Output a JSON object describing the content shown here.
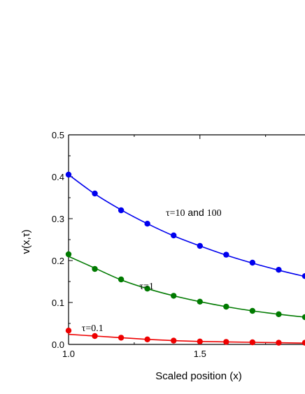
{
  "chart_data": {
    "type": "line",
    "xlabel": "Scaled position (x)",
    "ylabel": "v(x,τ)",
    "xlim": [
      1.0,
      1.9
    ],
    "ylim": [
      0.0,
      0.5
    ],
    "x_ticks": [
      "1.0",
      "1.5"
    ],
    "y_ticks": [
      "0.0",
      "0.1",
      "0.2",
      "0.3",
      "0.4",
      "0.5"
    ],
    "x_tick_values": [
      1.0,
      1.5
    ],
    "y_tick_values": [
      0.0,
      0.1,
      0.2,
      0.3,
      0.4,
      0.5
    ],
    "x_minor_ticks": [
      1.25,
      1.75
    ],
    "y_minor_ticks": [
      0.05,
      0.15,
      0.25,
      0.35,
      0.45
    ],
    "x": [
      1.0,
      1.1,
      1.2,
      1.3,
      1.4,
      1.5,
      1.6,
      1.7,
      1.8,
      1.9
    ],
    "series": [
      {
        "color": "#0000ee",
        "points": [
          0.405,
          0.36,
          0.32,
          0.288,
          0.26,
          0.235,
          0.214,
          0.195,
          0.178,
          0.163
        ],
        "curve": [
          0.405,
          0.359,
          0.321,
          0.288,
          0.259,
          0.235,
          0.213,
          0.194,
          0.177,
          0.162
        ]
      },
      {
        "color": "#007a00",
        "points": [
          0.215,
          0.18,
          0.155,
          0.133,
          0.116,
          0.102,
          0.09,
          0.08,
          0.072,
          0.065
        ],
        "curve": [
          0.21,
          0.182,
          0.154,
          0.133,
          0.116,
          0.102,
          0.09,
          0.08,
          0.072,
          0.065
        ]
      },
      {
        "color": "#ee0000",
        "points": [
          0.033,
          0.02,
          0.016,
          0.012,
          0.009,
          0.007,
          0.006,
          0.005,
          0.004,
          0.004
        ],
        "curve": [
          0.024,
          0.02,
          0.016,
          0.012,
          0.009,
          0.007,
          0.006,
          0.005,
          0.004,
          0.003
        ]
      }
    ],
    "annotations": [
      {
        "parts": [
          "τ=10",
          " and ",
          "100"
        ],
        "x": 1.37,
        "y": 0.315
      },
      {
        "parts": [
          "τ=1"
        ],
        "x": 1.27,
        "y": 0.14
      },
      {
        "parts": [
          "τ=0.1"
        ],
        "x": 1.05,
        "y": 0.04
      }
    ]
  }
}
